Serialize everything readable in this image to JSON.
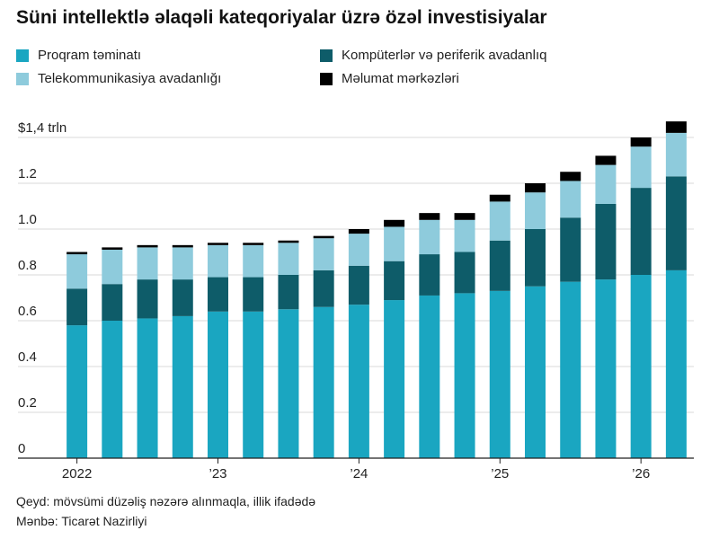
{
  "title": "Süni intellektlə əlaqəli kateqoriyalar üzrə özəl investisiyalar",
  "note": "Qeyd: mövsümi düzəliş nəzərə alınmaqla, illik ifadədə",
  "source": "Mənbə: Ticarət Nazirliyi",
  "chart_data": {
    "type": "bar",
    "stacked": true,
    "title": "Süni intellektlə əlaqəli kateqoriyalar üzrə özəl investisiyalar",
    "xlabel": "",
    "ylabel": "",
    "ylim": [
      0,
      1.4
    ],
    "yticks": [
      0,
      0.2,
      0.4,
      0.6,
      0.8,
      1.0,
      1.2,
      1.4
    ],
    "ytick_labels": [
      "0",
      "0.2",
      "0.4",
      "0.6",
      "0.8",
      "1.0",
      "1.2",
      "$1,4 trln"
    ],
    "grid": true,
    "legend_position": "top",
    "categories": [
      "2022 Q1",
      "2022 Q2",
      "2022 Q3",
      "2022 Q4",
      "2023 Q1",
      "2023 Q2",
      "2023 Q3",
      "2023 Q4",
      "2024 Q1",
      "2024 Q2",
      "2024 Q3",
      "2024 Q4",
      "2025 Q1",
      "2025 Q2",
      "2025 Q3",
      "2025 Q4",
      "2026 Q1",
      "2026 Q2"
    ],
    "xtick_labels": [
      {
        "index": 0,
        "label": "2022"
      },
      {
        "index": 4,
        "label": "’23"
      },
      {
        "index": 8,
        "label": "’24"
      },
      {
        "index": 12,
        "label": "’25"
      },
      {
        "index": 16,
        "label": "’26"
      }
    ],
    "series": [
      {
        "name": "Proqram təminatı",
        "color": "#1aa6c1",
        "values": [
          0.58,
          0.6,
          0.61,
          0.62,
          0.64,
          0.64,
          0.65,
          0.66,
          0.67,
          0.69,
          0.71,
          0.72,
          0.73,
          0.75,
          0.77,
          0.78,
          0.8,
          0.82
        ]
      },
      {
        "name": "Kompüterlər və periferik avadanlıq",
        "color": "#0e5c69",
        "values": [
          0.16,
          0.16,
          0.17,
          0.16,
          0.15,
          0.15,
          0.15,
          0.16,
          0.17,
          0.17,
          0.18,
          0.18,
          0.22,
          0.25,
          0.28,
          0.33,
          0.38,
          0.41
        ]
      },
      {
        "name": "Telekommunikasiya avadanlığı",
        "color": "#8ecbdc",
        "values": [
          0.15,
          0.15,
          0.14,
          0.14,
          0.14,
          0.14,
          0.14,
          0.14,
          0.14,
          0.15,
          0.15,
          0.14,
          0.17,
          0.16,
          0.16,
          0.17,
          0.18,
          0.19
        ]
      },
      {
        "name": "Məlumat mərkəzləri",
        "color": "#000000",
        "values": [
          0.01,
          0.01,
          0.01,
          0.01,
          0.01,
          0.01,
          0.01,
          0.01,
          0.02,
          0.03,
          0.03,
          0.03,
          0.03,
          0.04,
          0.04,
          0.04,
          0.04,
          0.05
        ]
      }
    ]
  }
}
